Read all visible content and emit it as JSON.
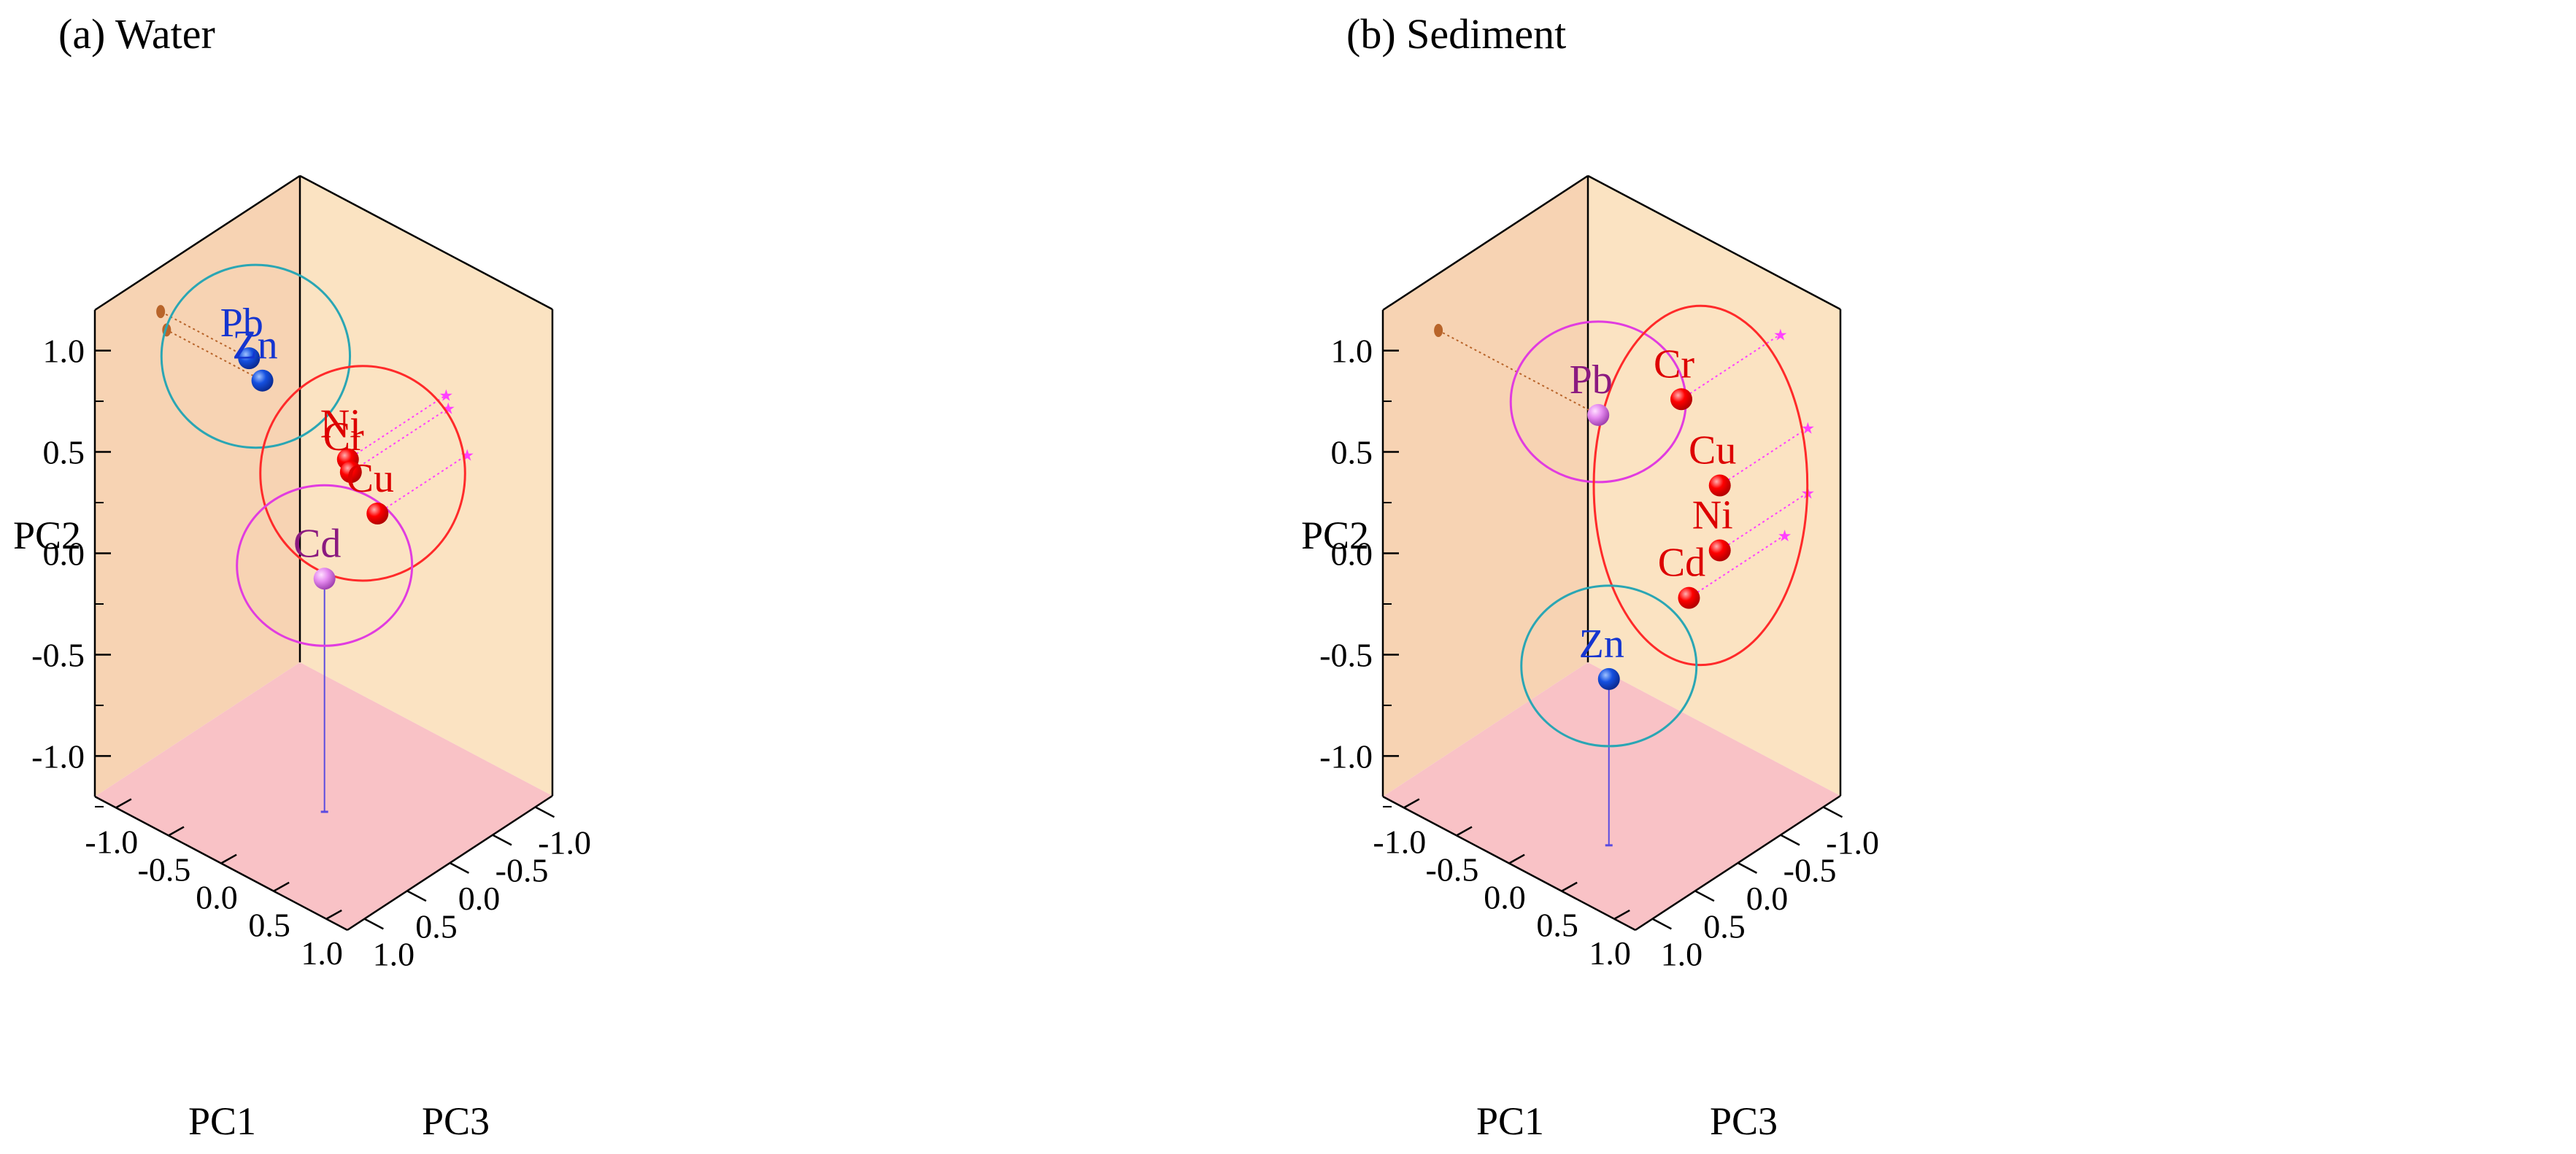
{
  "chart_data": [
    {
      "type": "scatter3d",
      "title": "(a) Water",
      "xlabel": "PC1",
      "ylabel": "PC2",
      "zlabel": "PC3",
      "xlim": [
        -1.2,
        1.2
      ],
      "ylim": [
        -1.2,
        1.2
      ],
      "zlim": [
        -1.2,
        1.2
      ],
      "xticks": [
        "-1.0",
        "-0.5",
        "0.0",
        "0.5",
        "1.0"
      ],
      "yticks": [
        "-1.0",
        "-0.5",
        "0.0",
        "0.5",
        "1.0"
      ],
      "zticks": [
        "1.0",
        "0.5",
        "0.0",
        "-0.5",
        "-1.0"
      ],
      "points": [
        {
          "label": "Pb",
          "pc1": -0.36,
          "pc2": 0.98,
          "pc3": 0.43,
          "group": "blue",
          "proj": "pc1-wall"
        },
        {
          "label": "Zn",
          "pc1": -0.29,
          "pc2": 0.87,
          "pc3": 0.36,
          "group": "blue",
          "proj": "pc1-wall"
        },
        {
          "label": "Ni",
          "pc1": 0.19,
          "pc2": 0.5,
          "pc3": -0.05,
          "group": "red",
          "proj": "pc3-wall"
        },
        {
          "label": "Cr",
          "pc1": 0.21,
          "pc2": 0.44,
          "pc3": -0.06,
          "group": "red",
          "proj": "pc3-wall"
        },
        {
          "label": "Cu",
          "pc1": 0.39,
          "pc2": 0.26,
          "pc3": -0.15,
          "group": "red",
          "proj": "pc3-wall"
        },
        {
          "label": "Cd",
          "pc1": 0.13,
          "pc2": -0.05,
          "pc3": 0.15,
          "group": "magenta",
          "proj": "floor"
        }
      ]
    },
    {
      "type": "scatter3d",
      "title": "(b) Sediment",
      "xlabel": "PC1",
      "ylabel": "PC2",
      "zlabel": "PC3",
      "xlim": [
        -1.2,
        1.2
      ],
      "ylim": [
        -1.2,
        1.2
      ],
      "zlim": [
        -1.2,
        1.2
      ],
      "xticks": [
        "-1.0",
        "-0.5",
        "0.0",
        "0.5",
        "1.0"
      ],
      "yticks": [
        "-1.0",
        "-0.5",
        "0.0",
        "0.5",
        "1.0"
      ],
      "zticks": [
        "1.0",
        "0.5",
        "0.0",
        "-0.5",
        "-1.0"
      ],
      "points": [
        {
          "label": "Pb",
          "pc1": 0.32,
          "pc2": 0.92,
          "pc3": 0.55,
          "group": "magenta",
          "proj": "pc1-wall"
        },
        {
          "label": "Cr",
          "pc1": 0.63,
          "pc2": 0.92,
          "pc3": -0.04,
          "group": "red",
          "proj": "pc3-wall"
        },
        {
          "label": "Cu",
          "pc1": 0.89,
          "pc2": 0.53,
          "pc3": -0.17,
          "group": "red",
          "proj": "pc3-wall"
        },
        {
          "label": "Ni",
          "pc1": 0.89,
          "pc2": 0.21,
          "pc3": -0.17,
          "group": "red",
          "proj": "pc3-wall"
        },
        {
          "label": "Cd",
          "pc1": 0.67,
          "pc2": -0.06,
          "pc3": -0.08,
          "group": "red",
          "proj": "pc3-wall"
        },
        {
          "label": "Zn",
          "pc1": 0.38,
          "pc2": -0.38,
          "pc3": 0.5,
          "group": "blue",
          "proj": "floor"
        }
      ]
    }
  ],
  "colors": {
    "back_wall": "#f7d3b3",
    "side_wall": "#fbe3c2",
    "floor": "#f9c2c6",
    "edge": "#000000",
    "red_point": "#ff0000",
    "red_label": "#dd0000",
    "blue_point": "#1550e0",
    "blue_label": "#1535d0",
    "magenta_point": "#e68cf0",
    "magenta_label": "#8b1a80",
    "cyan_ellipse": "#2aa6b4",
    "red_ellipse": "#ff2a2a",
    "magenta_ellipse": "#e13ce0",
    "brown_drop": "#b8642a",
    "magenta_drop": "#ff40ff",
    "floor_drop": "#5a4be0"
  },
  "ellipses": [
    [
      {
        "group": "blue",
        "members": [
          "Pb",
          "Zn"
        ]
      },
      {
        "group": "red",
        "members": [
          "Ni",
          "Cr",
          "Cu"
        ]
      },
      {
        "group": "magenta",
        "members": [
          "Cd"
        ]
      }
    ],
    [
      {
        "group": "magenta",
        "members": [
          "Pb"
        ]
      },
      {
        "group": "red",
        "members": [
          "Cr",
          "Cu",
          "Ni",
          "Cd"
        ]
      },
      {
        "group": "blue",
        "members": [
          "Zn"
        ]
      }
    ]
  ]
}
